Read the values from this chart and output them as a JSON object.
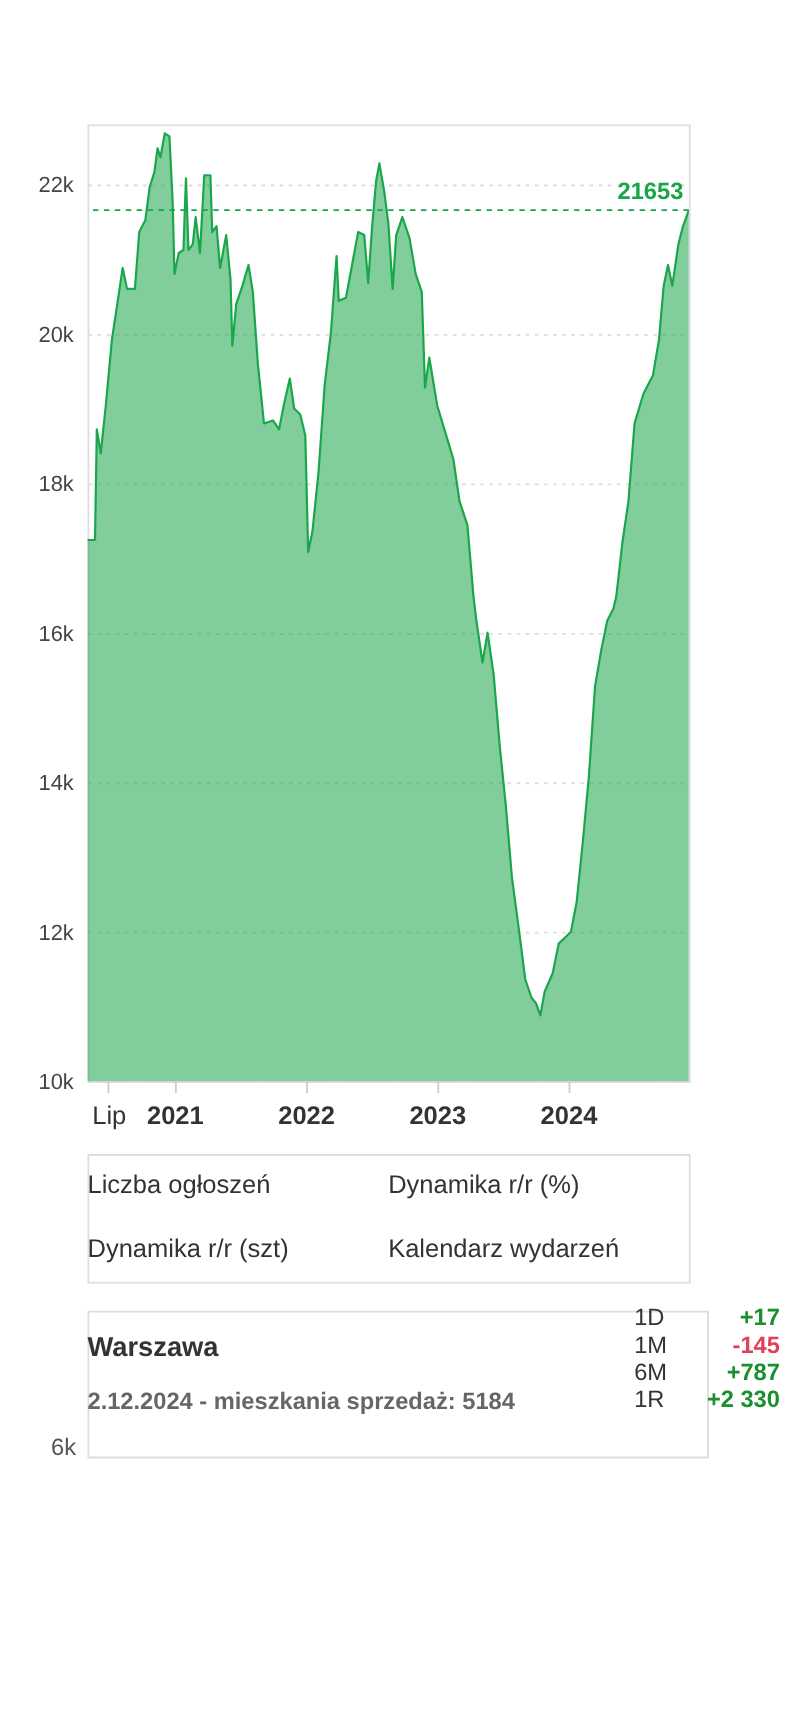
{
  "chart_data": [
    {
      "type": "area",
      "xlim": [
        "2020-05-04",
        "2024-12-02"
      ],
      "ylim": [
        10000,
        22800
      ],
      "xticks": [
        {
          "value": "2020-07-01",
          "label": "Lip"
        },
        {
          "value": "2021-01-01",
          "label": "2021"
        },
        {
          "value": "2022-01-01",
          "label": "2022"
        },
        {
          "value": "2023-01-01",
          "label": "2023"
        },
        {
          "value": "2024-01-01",
          "label": "2024"
        }
      ],
      "yticks": [
        {
          "value": 10000,
          "label": "10k"
        },
        {
          "value": 12000,
          "label": "12k"
        },
        {
          "value": 14000,
          "label": "14k"
        },
        {
          "value": 16000,
          "label": "16k"
        },
        {
          "value": 18000,
          "label": "18k"
        },
        {
          "value": 20000,
          "label": "20k"
        },
        {
          "value": 22000,
          "label": "22k"
        }
      ],
      "grid": "y",
      "ref_lines": [
        {
          "axis": "y",
          "value": 21653,
          "label": "21653",
          "color": "#16a548",
          "line_style": "dashed"
        }
      ],
      "annotations": [
        "Liczba ogłoszeń",
        "Dynamika r/r (%)",
        "Dynamika r/r (szt)",
        "Kalendarz wydarzeń"
      ],
      "x": [
        "2020-05-04",
        "2020-05-25",
        "2020-05-30",
        "2020-06-10",
        "2020-06-24",
        "2020-07-11",
        "2020-07-31",
        "2020-08-10",
        "2020-08-22",
        "2020-09-13",
        "2020-09-25",
        "2020-10-12",
        "2020-10-24",
        "2020-11-06",
        "2020-11-15",
        "2020-11-23",
        "2020-12-05",
        "2020-12-18",
        "2020-12-27",
        "2021-01-01",
        "2021-01-13",
        "2021-01-26",
        "2021-02-02",
        "2021-02-09",
        "2021-02-21",
        "2021-03-01",
        "2021-03-13",
        "2021-03-25",
        "2021-04-11",
        "2021-04-16",
        "2021-04-28",
        "2021-05-08",
        "2021-05-25",
        "2021-06-06",
        "2021-06-11",
        "2021-06-22",
        "2021-07-09",
        "2021-07-26",
        "2021-08-07",
        "2021-08-21",
        "2021-09-07",
        "2021-10-02",
        "2021-10-19",
        "2021-11-01",
        "2021-11-18",
        "2021-11-30",
        "2021-12-17",
        "2021-12-31",
        "2022-01-08",
        "2022-01-20",
        "2022-02-06",
        "2022-02-23",
        "2022-03-12",
        "2022-03-28",
        "2022-04-03",
        "2022-04-23",
        "2022-05-10",
        "2022-05-27",
        "2022-06-13",
        "2022-06-24",
        "2022-07-05",
        "2022-07-16",
        "2022-07-25",
        "2022-08-07",
        "2022-08-19",
        "2022-08-31",
        "2022-09-10",
        "2022-09-27",
        "2022-10-17",
        "2022-11-03",
        "2022-11-20",
        "2022-11-29",
        "2022-12-11",
        "2023-01-02",
        "2023-01-27",
        "2023-02-16",
        "2023-03-05",
        "2023-03-27",
        "2023-04-13",
        "2023-04-21",
        "2023-05-08",
        "2023-05-22",
        "2023-06-08",
        "2023-06-25",
        "2023-07-12",
        "2023-07-29",
        "2023-08-18",
        "2023-09-04",
        "2023-09-21",
        "2023-10-04",
        "2023-10-16",
        "2023-10-28",
        "2023-11-19",
        "2023-12-06",
        "2023-12-23",
        "2024-01-09",
        "2024-01-25",
        "2024-02-11",
        "2024-02-28",
        "2024-03-16",
        "2024-04-02",
        "2024-04-19",
        "2024-05-06",
        "2024-05-14",
        "2024-05-31",
        "2024-06-17",
        "2024-07-04",
        "2024-07-29",
        "2024-08-24",
        "2024-09-10",
        "2024-09-23",
        "2024-10-05",
        "2024-10-17",
        "2024-11-03",
        "2024-11-16",
        "2024-12-02"
      ],
      "series": [
        {
          "color": "#1aa64a",
          "values": [
            17240,
            17240,
            18720,
            18400,
            19040,
            19920,
            20560,
            20880,
            20600,
            20600,
            21360,
            21520,
            21960,
            22160,
            22480,
            22360,
            22680,
            22640,
            21760,
            20800,
            21080,
            21120,
            22080,
            21120,
            21200,
            21560,
            21080,
            22120,
            22120,
            21360,
            21440,
            20880,
            21320,
            20720,
            19840,
            20400,
            20640,
            20920,
            20560,
            19600,
            18800,
            18840,
            18720,
            19040,
            19400,
            19000,
            18920,
            18640,
            17080,
            17360,
            18160,
            19320,
            20000,
            21040,
            20440,
            20480,
            20920,
            21360,
            21320,
            20680,
            21440,
            22040,
            22280,
            21920,
            21480,
            20600,
            21320,
            21560,
            21280,
            20800,
            20560,
            19280,
            19680,
            19040,
            18640,
            18320,
            17760,
            17440,
            16480,
            16160,
            15600,
            16000,
            15440,
            14480,
            13680,
            12720,
            12000,
            11360,
            11120,
            11040,
            10880,
            11200,
            11440,
            11840,
            11920,
            12000,
            12400,
            13200,
            14080,
            15280,
            15760,
            16160,
            16320,
            16480,
            17200,
            17760,
            18800,
            19200,
            19440,
            19920,
            20640,
            20920,
            20640,
            21200,
            21440,
            21653
          ]
        }
      ]
    },
    {
      "type": "other",
      "title": "Warszawa",
      "subtitle": "2.12.2024 - mieszkania sprzedaż: 5184",
      "annotations": [
        "1D",
        "+17",
        "1M",
        "-145",
        "6M",
        "+787",
        "1R",
        "+2 330",
        "6k"
      ],
      "colors": [
        "#333333",
        "#1a8f2e",
        "#333333",
        "#e0405a",
        "#333333",
        "#1a8f2e",
        "#333333",
        "#1a8f2e",
        "#555555"
      ]
    }
  ]
}
